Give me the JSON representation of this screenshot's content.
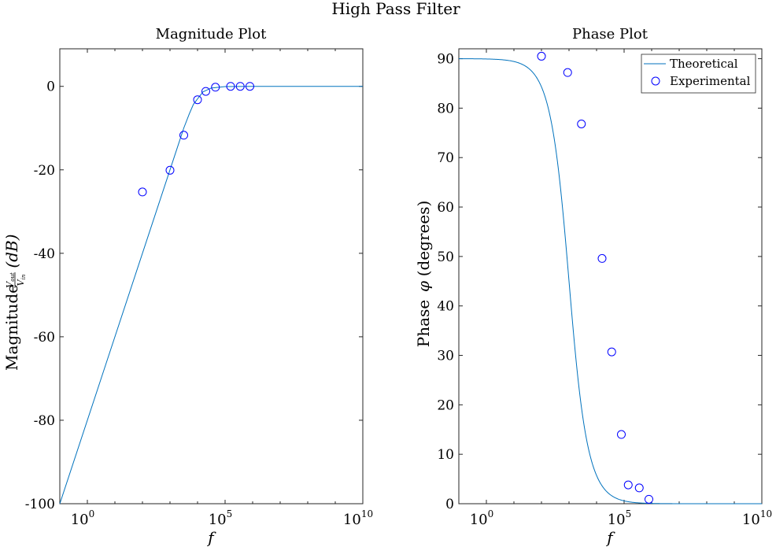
{
  "figure_title": "High Pass Filter",
  "chart_data": [
    {
      "type": "line",
      "title": "Magnitude Plot",
      "xlabel": "f",
      "ylabel": {
        "prefix": "Magnitude",
        "fraction_num": "V",
        "fraction_num_sub": "out",
        "fraction_den": "V",
        "fraction_den_sub": "in",
        "unit": "(dB)"
      },
      "xscale": "log",
      "xlim_exp": [
        -1,
        10
      ],
      "ylim": [
        -100,
        9
      ],
      "xticks": [
        {
          "exp": 0,
          "base": "10",
          "sup": "0"
        },
        {
          "exp": 5,
          "base": "10",
          "sup": "5"
        },
        {
          "exp": 10,
          "base": "10",
          "sup": "10"
        }
      ],
      "yticks": [
        0,
        -20,
        -40,
        -60,
        -80,
        -100
      ],
      "grid": false,
      "series": [
        {
          "style": "line",
          "color": "#0072BD",
          "points_log10f": [
            [
              -1,
              -100
            ],
            [
              2.6,
              -28
            ],
            [
              3.2,
              -16
            ],
            [
              3.5,
              -10
            ],
            [
              3.7,
              -6.6
            ],
            [
              3.85,
              -4.3
            ],
            [
              4.0,
              -3.0
            ],
            [
              4.2,
              -1.3
            ],
            [
              4.5,
              -0.4
            ],
            [
              5.0,
              -0.05
            ],
            [
              6.0,
              0
            ],
            [
              10,
              0
            ]
          ]
        },
        {
          "style": "marker",
          "marker": "o",
          "color": "#0000ff",
          "points_log10f": [
            [
              2.0,
              -25.3
            ],
            [
              3.0,
              -20.1
            ],
            [
              3.5,
              -11.7
            ],
            [
              4.0,
              -3.2
            ],
            [
              4.3,
              -1.2
            ],
            [
              4.65,
              -0.2
            ],
            [
              5.2,
              0
            ],
            [
              5.55,
              0
            ],
            [
              5.9,
              0
            ]
          ]
        }
      ]
    },
    {
      "type": "line",
      "title": "Phase Plot",
      "xlabel": "f",
      "ylabel": {
        "prefix": "Phase",
        "symbol": "φ",
        "unit": "(degrees)"
      },
      "xscale": "log",
      "xlim_exp": [
        -1,
        10
      ],
      "ylim": [
        0,
        92
      ],
      "xticks": [
        {
          "exp": 0,
          "base": "10",
          "sup": "0"
        },
        {
          "exp": 5,
          "base": "10",
          "sup": "5"
        },
        {
          "exp": 10,
          "base": "10",
          "sup": "10"
        }
      ],
      "yticks": [
        0,
        10,
        20,
        30,
        40,
        50,
        60,
        70,
        80,
        90
      ],
      "grid": false,
      "legend": {
        "position": "top-right",
        "entries": [
          {
            "label": "Theoretical",
            "kind": "line",
            "color": "#0072BD"
          },
          {
            "label": "Experimental",
            "kind": "marker",
            "color": "#0000ff"
          }
        ]
      },
      "series": [
        {
          "name": "Theoretical",
          "style": "line",
          "color": "#0072BD",
          "model": {
            "corner_log10f": 3.0,
            "max_deg": 90
          }
        },
        {
          "name": "Experimental",
          "style": "marker",
          "marker": "o",
          "color": "#0000ff",
          "points_log10f": [
            [
              2.0,
              90.5
            ],
            [
              2.95,
              87.2
            ],
            [
              3.45,
              76.8
            ],
            [
              4.2,
              49.6
            ],
            [
              4.55,
              30.7
            ],
            [
              4.9,
              14.0
            ],
            [
              5.15,
              3.8
            ],
            [
              5.55,
              3.2
            ],
            [
              5.9,
              0.9
            ]
          ]
        }
      ]
    }
  ]
}
